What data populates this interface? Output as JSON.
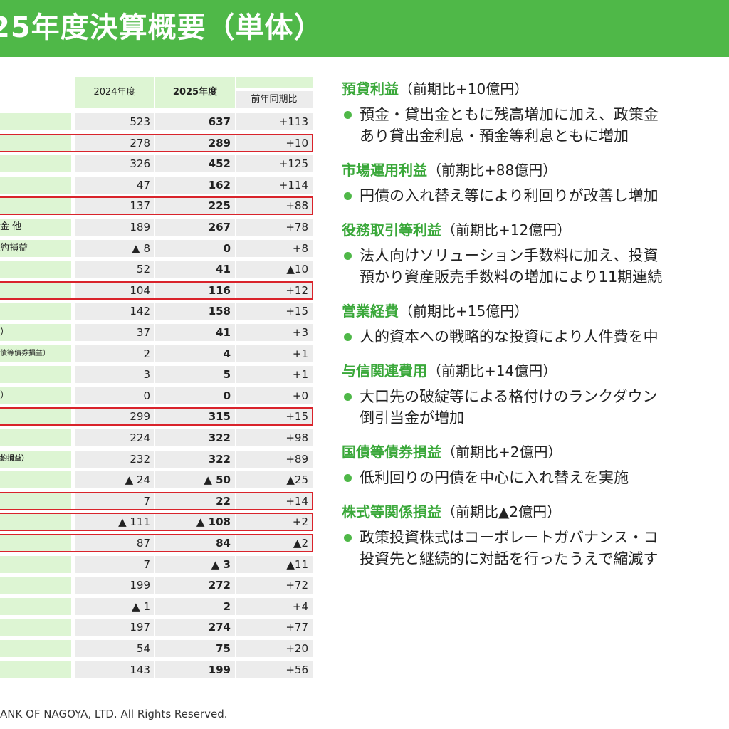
{
  "title": "25年度決算概要（単体）",
  "table": {
    "headers": {
      "y2024": "2024年度",
      "y2025": "2025年度",
      "diff": "前年同期比"
    },
    "rows": [
      {
        "label": "",
        "y2024": "523",
        "y2025": "637",
        "diff": "+113",
        "hl": false
      },
      {
        "label": "",
        "y2024": "278",
        "y2025": "289",
        "diff": "+10",
        "hl": true
      },
      {
        "label": "",
        "y2024": "326",
        "y2025": "452",
        "diff": "+125",
        "hl": false
      },
      {
        "label": "",
        "y2024": "47",
        "y2025": "162",
        "diff": "+114",
        "hl": false
      },
      {
        "label": "",
        "y2024": "137",
        "y2025": "225",
        "diff": "+88",
        "hl": true
      },
      {
        "label": "金 他",
        "y2024": "189",
        "y2025": "267",
        "diff": "+78",
        "hl": false
      },
      {
        "label": "約損益",
        "y2024": "▲ 8",
        "y2025": "0",
        "diff": "+8",
        "hl": false
      },
      {
        "label": "",
        "y2024": "52",
        "y2025": "41",
        "diff": "▲10",
        "hl": false
      },
      {
        "label": "",
        "y2024": "104",
        "y2025": "116",
        "diff": "+12",
        "hl": true
      },
      {
        "label": "",
        "y2024": "142",
        "y2025": "158",
        "diff": "+15",
        "hl": false
      },
      {
        "label": "）",
        "y2024": "37",
        "y2025": "41",
        "diff": "+3",
        "hl": false
      },
      {
        "label": "債等債券損益）",
        "y2024": "2",
        "y2025": "4",
        "diff": "+1",
        "hl": false
      },
      {
        "label": "",
        "y2024": "3",
        "y2025": "5",
        "diff": "+1",
        "hl": false
      },
      {
        "label": "）",
        "y2024": "0",
        "y2025": "0",
        "diff": "+0",
        "hl": false
      },
      {
        "label": "",
        "y2024": "299",
        "y2025": "315",
        "diff": "+15",
        "hl": true
      },
      {
        "label": "",
        "y2024": "224",
        "y2025": "322",
        "diff": "+98",
        "hl": false
      },
      {
        "label": "約損益）",
        "y2024": "232",
        "y2025": "322",
        "diff": "+89",
        "hl": false
      },
      {
        "label": "",
        "y2024": "▲ 24",
        "y2025": "▲ 50",
        "diff": "▲25",
        "hl": false
      },
      {
        "label": "",
        "y2024": "7",
        "y2025": "22",
        "diff": "+14",
        "hl": true
      },
      {
        "label": "",
        "y2024": "▲ 111",
        "y2025": "▲ 108",
        "diff": "+2",
        "hl": true
      },
      {
        "label": "",
        "y2024": "87",
        "y2025": "84",
        "diff": "▲2",
        "hl": true
      },
      {
        "label": "",
        "y2024": "7",
        "y2025": "▲ 3",
        "diff": "▲11",
        "hl": false
      },
      {
        "label": "",
        "y2024": "199",
        "y2025": "272",
        "diff": "+72",
        "hl": false
      },
      {
        "label": "",
        "y2024": "▲ 1",
        "y2025": "2",
        "diff": "+4",
        "hl": false
      },
      {
        "label": "",
        "y2024": "197",
        "y2025": "274",
        "diff": "+77",
        "hl": false
      },
      {
        "label": "",
        "y2024": "54",
        "y2025": "75",
        "diff": "+20",
        "hl": false
      },
      {
        "label": "",
        "y2024": "143",
        "y2025": "199",
        "diff": "+56",
        "hl": false
      }
    ]
  },
  "sections": [
    {
      "key": "預貸利益",
      "paren": "（前期比+10億円）",
      "lines": [
        "預金・貸出金ともに残高増加に加え、政策金",
        "あり貸出金利息・預金等利息ともに増加"
      ]
    },
    {
      "key": "市場運用利益",
      "paren": "（前期比+88億円）",
      "lines": [
        "円債の入れ替え等により利回りが改善し増加"
      ]
    },
    {
      "key": "役務取引等利益",
      "paren": "（前期比+12億円）",
      "lines": [
        "法人向けソリューション手数料に加え、投資",
        "預かり資産販売手数料の増加により11期連続"
      ]
    },
    {
      "key": "営業経費",
      "paren": "（前期比+15億円）",
      "lines": [
        "人的資本への戦略的な投資により人件費を中"
      ]
    },
    {
      "key": "与信関連費用",
      "paren": "（前期比+14億円）",
      "lines": [
        "大口先の破綻等による格付けのランクダウン",
        "倒引当金が増加"
      ]
    },
    {
      "key": "国債等債券損益",
      "paren": "（前期比+2億円）",
      "lines": [
        "低利回りの円債を中心に入れ替えを実施"
      ]
    },
    {
      "key": "株式等関係損益",
      "paren": "（前期比▲2億円）",
      "lines": [
        "政策投資株式はコーポレートガバナンス・コ",
        "投資先と継続的に対話を行ったうえで縮減す"
      ]
    }
  ],
  "footer": "ANK OF NAGOYA, LTD. All Rights Reserved."
}
